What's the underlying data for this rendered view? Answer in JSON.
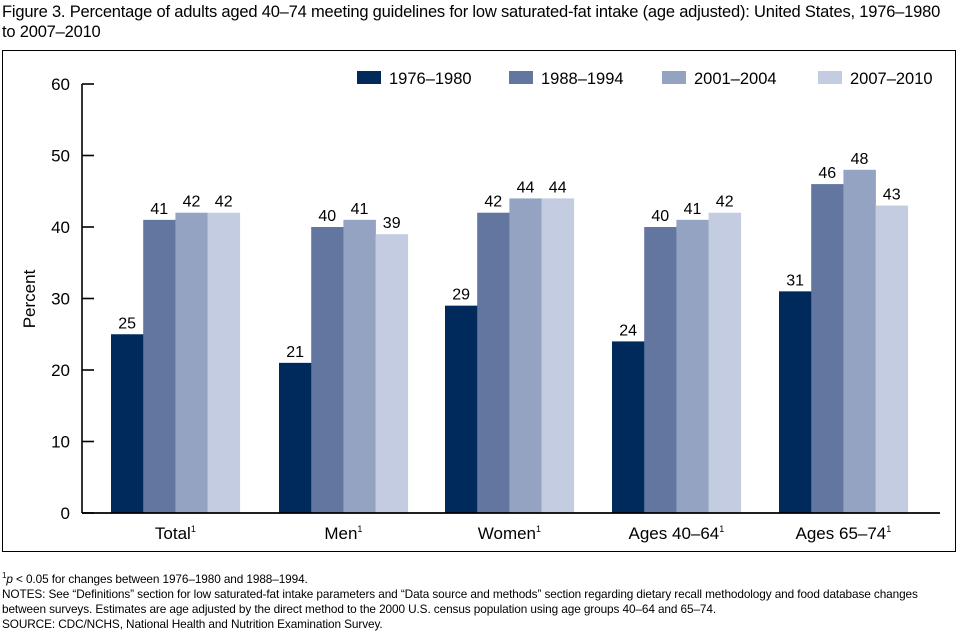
{
  "title": "Figure 3. Percentage of adults aged 40–74 meeting guidelines for low saturated-fat intake (age adjusted): United States, 1976–1980 to 2007–2010",
  "chart_data": {
    "type": "bar",
    "title": "Percentage of adults aged 40–74 meeting guidelines for low saturated-fat intake (age adjusted): United States, 1976–1980 to 2007–2010",
    "xlabel": "",
    "ylabel": "Percent",
    "ylim": [
      0,
      60
    ],
    "yticks": [
      0,
      10,
      20,
      30,
      40,
      50,
      60
    ],
    "grid": false,
    "legend_position": "top-right",
    "categories": [
      "Total",
      "Men",
      "Women",
      "Ages 40–64",
      "Ages 65–74"
    ],
    "category_superscript": "1",
    "series": [
      {
        "name": "1976–1980",
        "color": "#002a5c",
        "values": [
          25,
          21,
          29,
          24,
          31
        ]
      },
      {
        "name": "1988–1994",
        "color": "#62769f",
        "values": [
          41,
          40,
          42,
          40,
          46
        ]
      },
      {
        "name": "2001–2004",
        "color": "#95a3c3",
        "values": [
          42,
          41,
          44,
          41,
          48
        ]
      },
      {
        "name": "2007–2010",
        "color": "#c3cce0",
        "values": [
          42,
          39,
          44,
          42,
          43
        ]
      }
    ]
  },
  "notes": {
    "footnote_mark": "1",
    "footnote_p": "p",
    "footnote_text": " < 0.05 for changes between 1976–1980 and 1988–1994.",
    "notes_line": "NOTES: See “Definitions” section for low saturated-fat intake parameters and “Data source and methods” section regarding dietary recall methodology and food database changes between surveys. Estimates are age adjusted by the direct method to the 2000 U.S. census population using age groups 40–64 and 65–74.",
    "source_line": "SOURCE: CDC/NCHS, National Health and Nutrition Examination Survey."
  }
}
